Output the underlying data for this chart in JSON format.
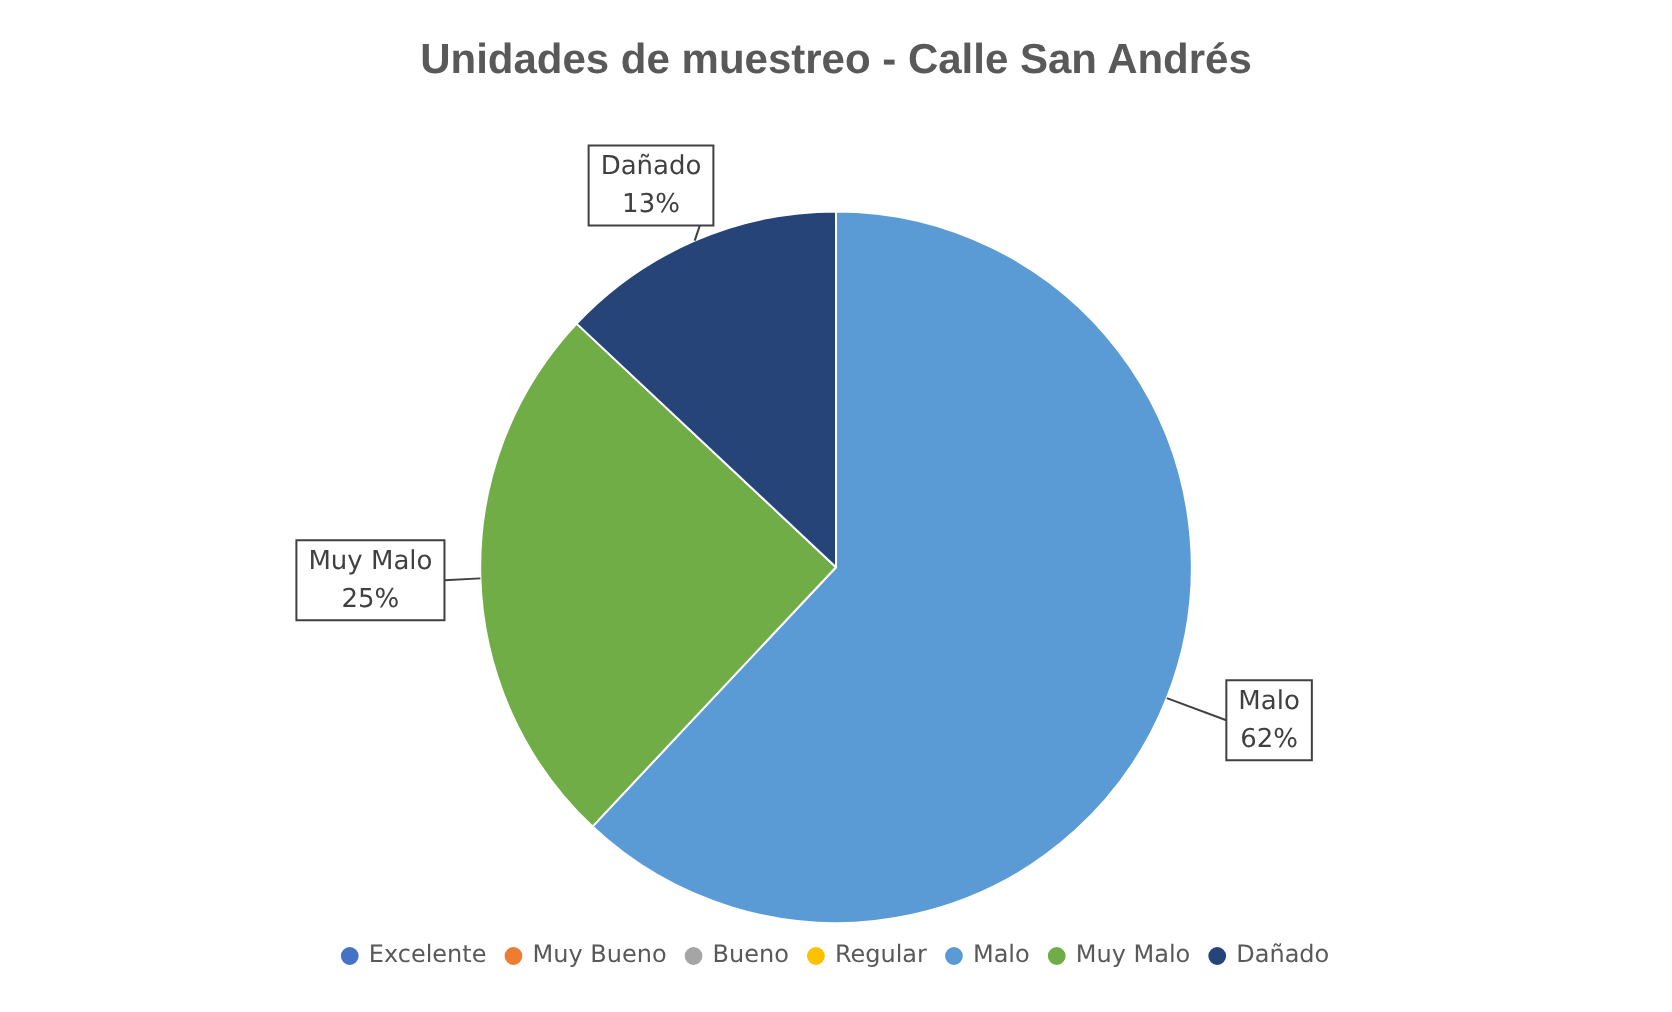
{
  "chart_data": {
    "type": "pie",
    "title": "Unidades de muestreo - Calle San Andrés",
    "categories": [
      "Excelente",
      "Muy Bueno",
      "Bueno",
      "Regular",
      "Malo",
      "Muy Malo",
      "Dañado"
    ],
    "values": [
      0,
      0,
      0,
      0,
      62,
      25,
      13
    ],
    "colors": [
      "#4472c4",
      "#ed7d31",
      "#a5a5a5",
      "#ffc000",
      "#5b9bd5",
      "#70ad47",
      "#264478"
    ],
    "value_labels": [
      null,
      null,
      null,
      null,
      "62%",
      "25%",
      "13%"
    ],
    "legend": "bottom"
  }
}
